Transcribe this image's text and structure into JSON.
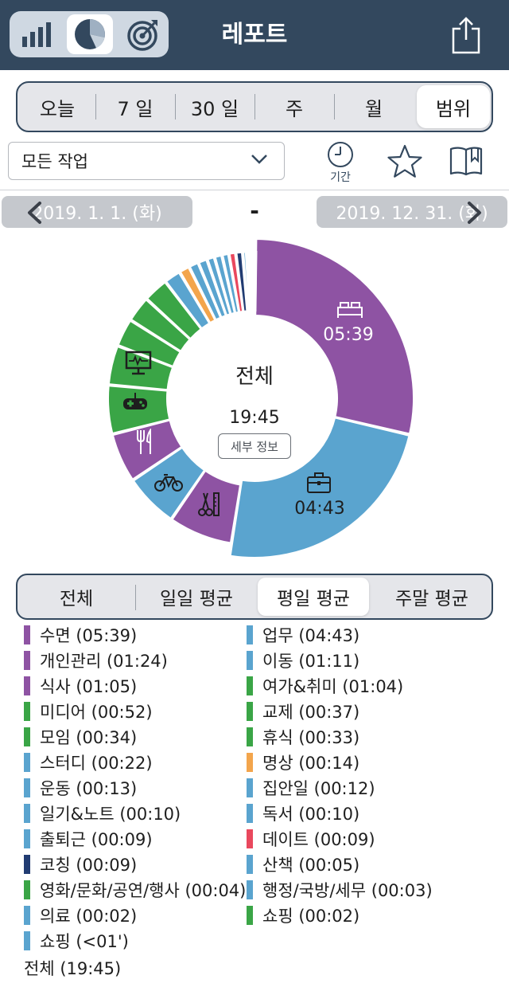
{
  "header": {
    "title": "레포트",
    "view_icons": [
      "bar-chart-icon",
      "pie-chart-icon",
      "target-icon"
    ],
    "active_view": 1
  },
  "period_tabs": [
    "오늘",
    "7 일",
    "30 일",
    "주",
    "월",
    "범위"
  ],
  "period_active": 5,
  "task_filter": "모든 작업",
  "period_button_label": "기간",
  "date_range": {
    "start": "2019. 1. 1. (화)",
    "separator": "-",
    "end": "2019. 12. 31. (화)"
  },
  "chart_center": {
    "title": "전체",
    "total": "19:45",
    "detail_button": "세부 정보"
  },
  "average_tabs": [
    "전체",
    "일일 평균",
    "평일 평균",
    "주말 평균"
  ],
  "average_active": 2,
  "colors": {
    "purple": "#8e53a3",
    "blue": "#5aa4cf",
    "green": "#3aa546",
    "orange": "#f3a54c",
    "red": "#e9485d",
    "navy": "#213c72",
    "header": "#33485e"
  },
  "chart_data": {
    "type": "pie",
    "donut": true,
    "total": "19:45",
    "slices": [
      {
        "name": "수면",
        "time": "05:39",
        "minutes": 339,
        "color": "#8e53a3",
        "icon": "bed-icon"
      },
      {
        "name": "업무",
        "time": "04:43",
        "minutes": 283,
        "color": "#5aa4cf",
        "icon": "briefcase-icon"
      },
      {
        "name": "개인관리",
        "time": "01:24",
        "minutes": 84,
        "color": "#8e53a3",
        "icon": "grooming-icon"
      },
      {
        "name": "이동",
        "time": "01:11",
        "minutes": 71,
        "color": "#5aa4cf",
        "icon": "bicycle-icon"
      },
      {
        "name": "식사",
        "time": "01:05",
        "minutes": 65,
        "color": "#8e53a3",
        "icon": "fork-knife-icon"
      },
      {
        "name": "여가&취미",
        "time": "01:04",
        "minutes": 64,
        "color": "#3aa546",
        "icon": "gamepad-icon"
      },
      {
        "name": "미디어",
        "time": "00:52",
        "minutes": 52,
        "color": "#3aa546",
        "icon": "monitor-icon"
      },
      {
        "name": "교제",
        "time": "00:37",
        "minutes": 37,
        "color": "#3aa546"
      },
      {
        "name": "모임",
        "time": "00:34",
        "minutes": 34,
        "color": "#3aa546"
      },
      {
        "name": "휴식",
        "time": "00:33",
        "minutes": 33,
        "color": "#3aa546"
      },
      {
        "name": "스터디",
        "time": "00:22",
        "minutes": 22,
        "color": "#5aa4cf"
      },
      {
        "name": "명상",
        "time": "00:14",
        "minutes": 14,
        "color": "#f3a54c"
      },
      {
        "name": "운동",
        "time": "00:13",
        "minutes": 13,
        "color": "#5aa4cf"
      },
      {
        "name": "집안일",
        "time": "00:12",
        "minutes": 12,
        "color": "#5aa4cf"
      },
      {
        "name": "일기&노트",
        "time": "00:10",
        "minutes": 10,
        "color": "#5aa4cf"
      },
      {
        "name": "독서",
        "time": "00:10",
        "minutes": 10,
        "color": "#5aa4cf"
      },
      {
        "name": "출퇴근",
        "time": "00:09",
        "minutes": 9,
        "color": "#5aa4cf"
      },
      {
        "name": "데이트",
        "time": "00:09",
        "minutes": 9,
        "color": "#e9485d"
      },
      {
        "name": "코칭",
        "time": "00:09",
        "minutes": 9,
        "color": "#213c72"
      },
      {
        "name": "산책",
        "time": "00:05",
        "minutes": 5,
        "color": "#5aa4cf"
      },
      {
        "name": "영화/문화/공연/행사",
        "time": "00:04",
        "minutes": 4,
        "color": "#3aa546"
      },
      {
        "name": "행정/국방/세무",
        "time": "00:03",
        "minutes": 3,
        "color": "#5aa4cf"
      },
      {
        "name": "의료",
        "time": "00:02",
        "minutes": 2,
        "color": "#5aa4cf"
      },
      {
        "name": "쇼핑",
        "time": "00:02",
        "minutes": 2,
        "color": "#3aa546"
      },
      {
        "name": "쇼핑",
        "time": "<01'",
        "minutes": 0.5,
        "color": "#5aa4cf"
      }
    ]
  },
  "legend": [
    {
      "label": "수면 (05:39)",
      "color": "#8e53a3"
    },
    {
      "label": "업무 (04:43)",
      "color": "#5aa4cf"
    },
    {
      "label": "개인관리 (01:24)",
      "color": "#8e53a3"
    },
    {
      "label": "이동 (01:11)",
      "color": "#5aa4cf"
    },
    {
      "label": "식사 (01:05)",
      "color": "#8e53a3"
    },
    {
      "label": "여가&취미 (01:04)",
      "color": "#3aa546"
    },
    {
      "label": "미디어 (00:52)",
      "color": "#3aa546"
    },
    {
      "label": "교제 (00:37)",
      "color": "#3aa546"
    },
    {
      "label": "모임 (00:34)",
      "color": "#3aa546"
    },
    {
      "label": "휴식 (00:33)",
      "color": "#3aa546"
    },
    {
      "label": "스터디 (00:22)",
      "color": "#5aa4cf"
    },
    {
      "label": "명상 (00:14)",
      "color": "#f3a54c"
    },
    {
      "label": "운동 (00:13)",
      "color": "#5aa4cf"
    },
    {
      "label": "집안일 (00:12)",
      "color": "#5aa4cf"
    },
    {
      "label": "일기&노트 (00:10)",
      "color": "#5aa4cf"
    },
    {
      "label": "독서 (00:10)",
      "color": "#5aa4cf"
    },
    {
      "label": "출퇴근 (00:09)",
      "color": "#5aa4cf"
    },
    {
      "label": "데이트 (00:09)",
      "color": "#e9485d"
    },
    {
      "label": "코칭 (00:09)",
      "color": "#213c72"
    },
    {
      "label": "산책 (00:05)",
      "color": "#5aa4cf"
    },
    {
      "label": "영화/문화/공연/행사 (00:04)",
      "color": "#3aa546"
    },
    {
      "label": "행정/국방/세무 (00:03)",
      "color": "#5aa4cf"
    },
    {
      "label": "의료 (00:02)",
      "color": "#5aa4cf"
    },
    {
      "label": "쇼핑 (00:02)",
      "color": "#3aa546"
    },
    {
      "label": "쇼핑 (<01')",
      "color": "#5aa4cf"
    }
  ],
  "legend_total": "전체 (19:45)"
}
